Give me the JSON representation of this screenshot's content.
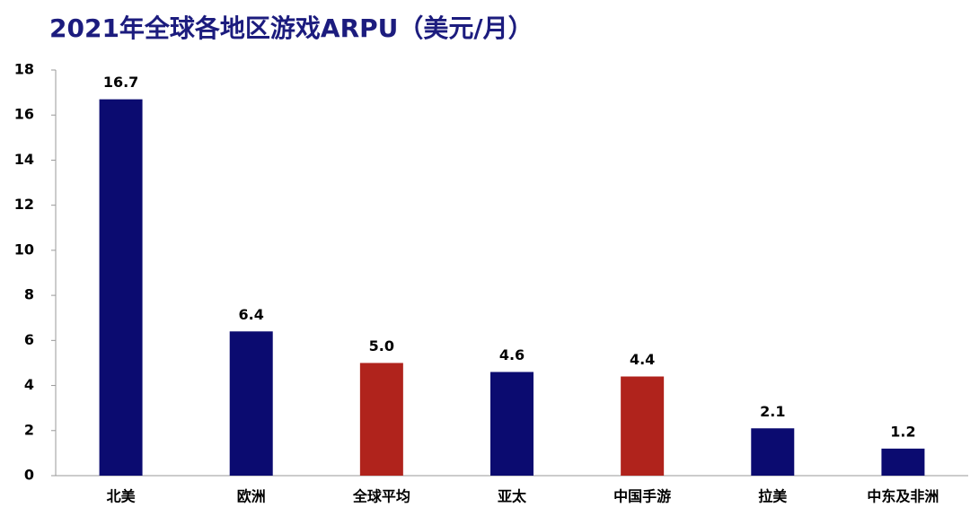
{
  "chart_data": {
    "type": "bar",
    "title": "2021年全球各地区游戏ARPU（美元/月）",
    "categories": [
      "北美",
      "欧洲",
      "全球平均",
      "亚太",
      "中国手游",
      "拉美",
      "中东及非洲"
    ],
    "values": [
      16.7,
      6.4,
      5,
      4.6,
      4.4,
      2.1,
      1.2
    ],
    "value_labels": [
      "16.7",
      "6.4",
      "5.0",
      "4.6",
      "4.4",
      "2.1",
      "1.2"
    ],
    "colors": [
      "#0b0b70",
      "#0b0b70",
      "#b0231c",
      "#0b0b70",
      "#b0231c",
      "#0b0b70",
      "#0b0b70"
    ],
    "ylim": [
      0,
      18
    ],
    "yticks": [
      0,
      2,
      4,
      6,
      8,
      10,
      12,
      14,
      16,
      18
    ],
    "grid": false
  }
}
